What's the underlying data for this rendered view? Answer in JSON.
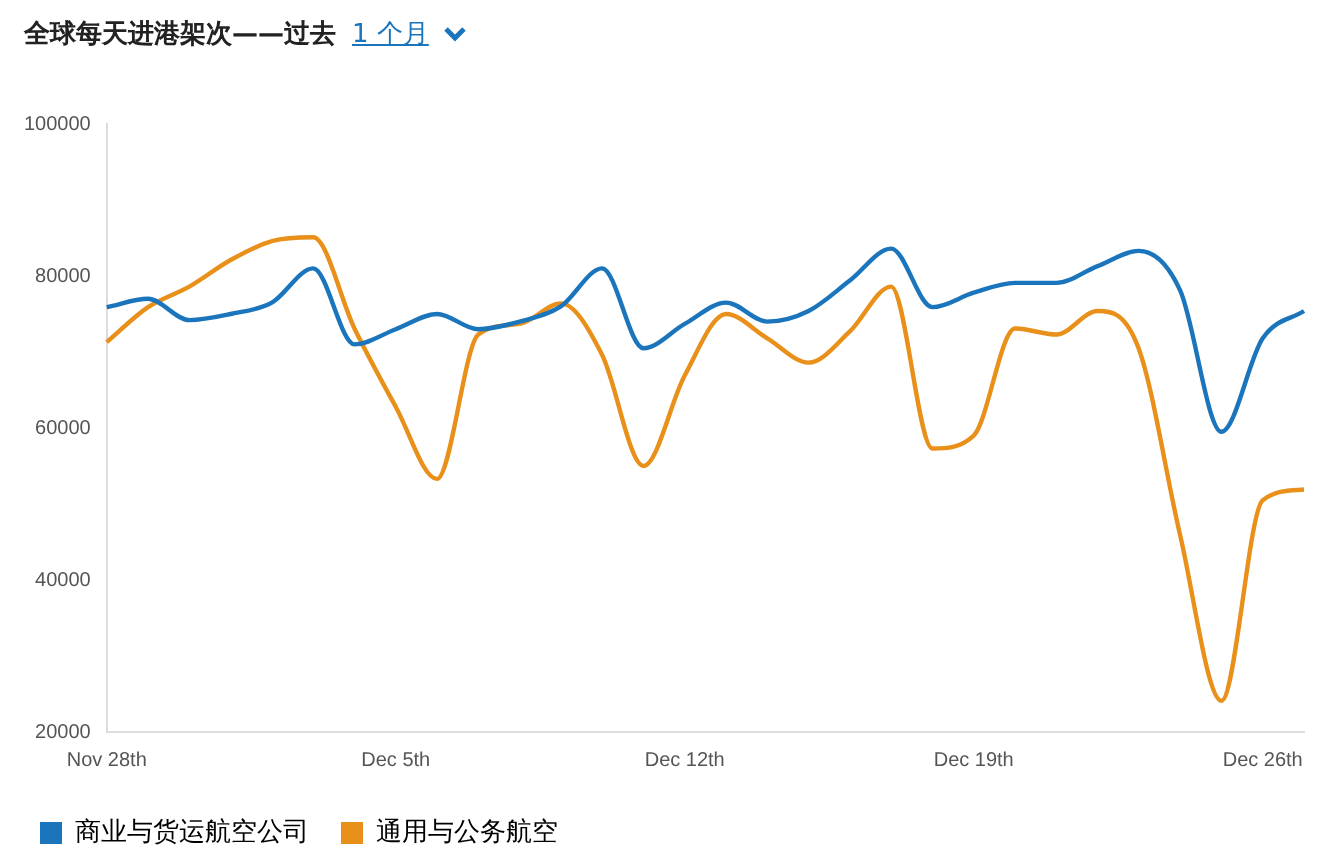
{
  "chart_data": {
    "type": "line",
    "title": "全球每天进港架次——过去",
    "subtitle": "1 个月",
    "categories": [
      "Nov 28th",
      null,
      null,
      null,
      null,
      null,
      null,
      "Dec 5th",
      null,
      null,
      null,
      null,
      null,
      null,
      "Dec 12th",
      null,
      null,
      null,
      null,
      null,
      null,
      "Dec 19th",
      null,
      null,
      null,
      null,
      null,
      null,
      "Dec 26th",
      null
    ],
    "series": [
      {
        "name": "商业与货运航空公司",
        "color": "#1a75bc",
        "values": [
          75900,
          77000,
          74200,
          75000,
          76500,
          81000,
          71000,
          73000,
          75000,
          73000,
          74000,
          76000,
          81000,
          70500,
          73700,
          76500,
          74000,
          75400,
          79400,
          83600,
          75900,
          77800,
          79100,
          79100,
          81300,
          83300,
          78100,
          59500,
          71800,
          75400
        ]
      },
      {
        "name": "通用与公务航空",
        "color": "#e8901a",
        "values": [
          71300,
          75900,
          78600,
          82100,
          84600,
          85100,
          73100,
          62800,
          53300,
          72300,
          73700,
          76400,
          69600,
          55000,
          66900,
          75000,
          71800,
          68600,
          72700,
          78600,
          57300,
          59000,
          73100,
          72300,
          75400,
          70400,
          45900,
          24100,
          50500,
          51900
        ]
      }
    ],
    "ylim": [
      20000,
      100000
    ],
    "yticks": [
      20000,
      40000,
      60000,
      80000,
      100000
    ],
    "grid": false,
    "legend": "bottom",
    "marker": "none"
  }
}
